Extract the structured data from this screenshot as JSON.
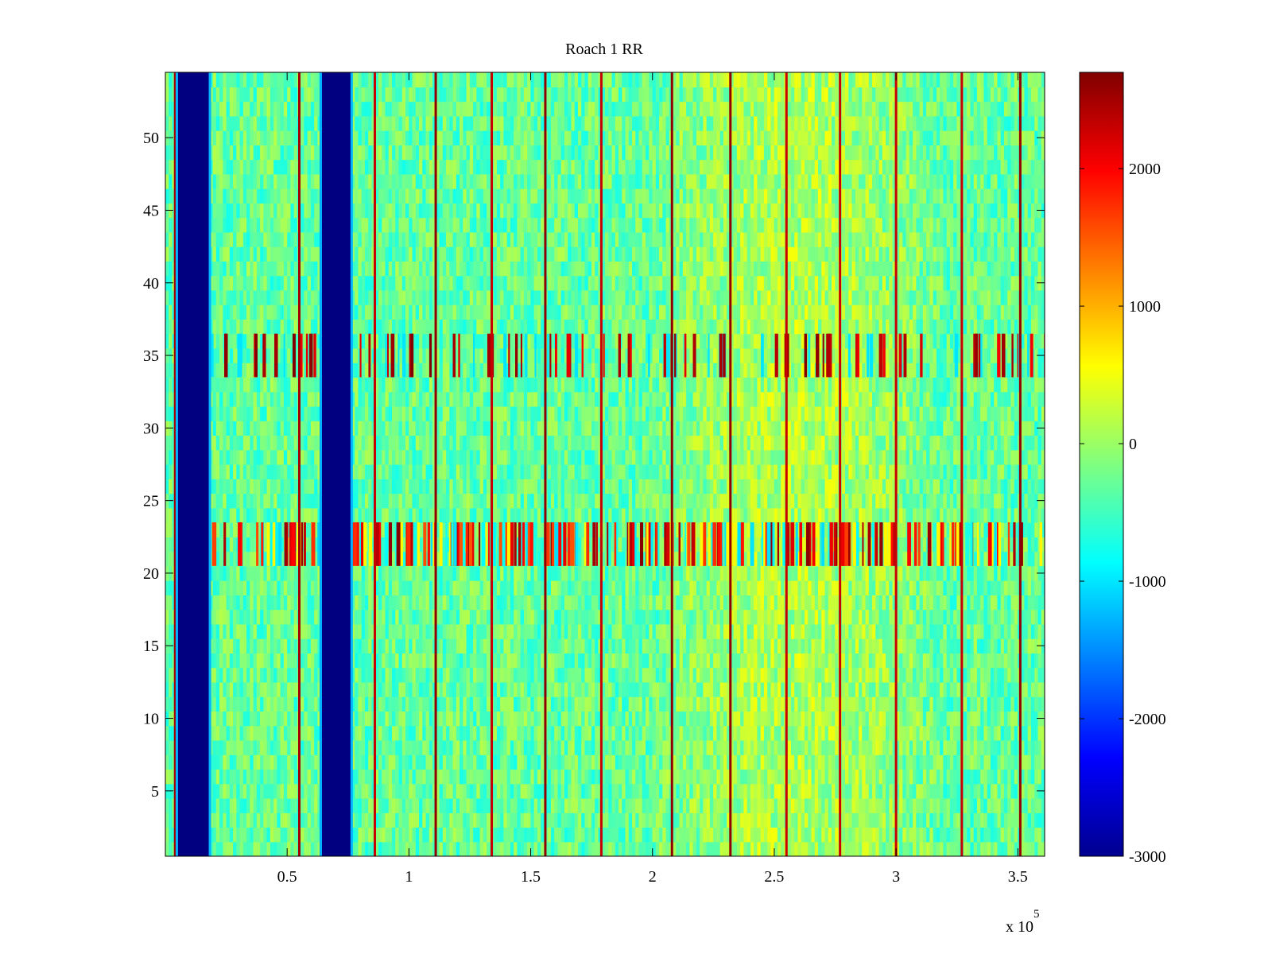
{
  "chart_data": {
    "type": "heatmap",
    "title": "Roach 1 RR",
    "xlabel": "",
    "ylabel": "",
    "x_exponent_label": "x 10",
    "x_exponent": "5",
    "xlim": [
      0,
      361000
    ],
    "ylim": [
      0.5,
      54.5
    ],
    "x_ticks": [
      {
        "value": 50000,
        "label": "0.5"
      },
      {
        "value": 100000,
        "label": "1"
      },
      {
        "value": 150000,
        "label": "1.5"
      },
      {
        "value": 200000,
        "label": "2"
      },
      {
        "value": 250000,
        "label": "2.5"
      },
      {
        "value": 300000,
        "label": "3"
      },
      {
        "value": 350000,
        "label": "3.5"
      }
    ],
    "y_ticks": [
      {
        "value": 5,
        "label": "5"
      },
      {
        "value": 10,
        "label": "10"
      },
      {
        "value": 15,
        "label": "15"
      },
      {
        "value": 20,
        "label": "20"
      },
      {
        "value": 25,
        "label": "25"
      },
      {
        "value": 30,
        "label": "30"
      },
      {
        "value": 35,
        "label": "35"
      },
      {
        "value": 40,
        "label": "40"
      },
      {
        "value": 45,
        "label": "45"
      },
      {
        "value": 50,
        "label": "50"
      }
    ],
    "colorbar": {
      "colormap": "jet",
      "clim": [
        -3000,
        2700
      ],
      "ticks": [
        {
          "value": 2000,
          "label": "2000"
        },
        {
          "value": 1000,
          "label": "1000"
        },
        {
          "value": 0,
          "label": "0"
        },
        {
          "value": -1000,
          "label": "-1000"
        },
        {
          "value": -2000,
          "label": "-2000"
        },
        {
          "value": -3000,
          "label": "-3000"
        }
      ]
    },
    "background_level": -300,
    "blue_bands": [
      {
        "x_start": 5200,
        "x_end": 17800,
        "value": -3000
      },
      {
        "x_start": 64300,
        "x_end": 76000,
        "value": -3000
      }
    ],
    "red_lines": [
      {
        "x": 4000,
        "value": 2500
      },
      {
        "x": 55000,
        "value": 2500
      },
      {
        "x": 86000,
        "value": 2300
      },
      {
        "x": 111000,
        "value": 2600
      },
      {
        "x": 134000,
        "value": 2300
      },
      {
        "x": 156000,
        "value": 2600
      },
      {
        "x": 179000,
        "value": 2300
      },
      {
        "x": 208000,
        "value": 2600
      },
      {
        "x": 232000,
        "value": 2600
      },
      {
        "x": 255000,
        "value": 2300
      },
      {
        "x": 277000,
        "value": 2300
      },
      {
        "x": 300000,
        "value": 2300
      },
      {
        "x": 327000,
        "value": 2300
      },
      {
        "x": 351000,
        "value": 2600
      }
    ],
    "rows": [
      {
        "y_start": 33.5,
        "y_end": 36.5,
        "pattern": "sparse red-cyan spikes"
      },
      {
        "y_start": 20.5,
        "y_end": 23.5,
        "pattern": "dense red-cyan spikes"
      }
    ],
    "warm_region": {
      "x_start": 200000,
      "x_end": 320000,
      "value": 400
    }
  }
}
